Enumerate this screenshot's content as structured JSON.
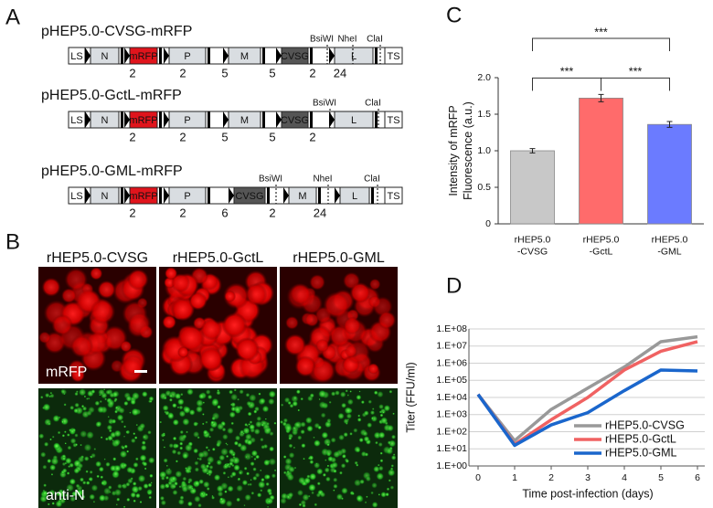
{
  "panels": {
    "a": {
      "label": "A",
      "constructs": [
        {
          "name": "pHEP5.0-CVSG-mRFP",
          "segments": [
            "LS",
            "N",
            "mRFP",
            "P",
            "M",
            "CVSG",
            "L",
            "TS"
          ],
          "junctions": [
            "2",
            "2",
            "5",
            "5",
            "2",
            "24"
          ],
          "sites": [
            "BsiWI",
            "NheI",
            "ClaI"
          ]
        },
        {
          "name": "pHEP5.0-GctL-mRFP",
          "segments": [
            "LS",
            "N",
            "mRFP",
            "P",
            "M",
            "CVSG",
            "L",
            "TS"
          ],
          "junctions": [
            "2",
            "2",
            "5",
            "5",
            "2"
          ],
          "sites": [
            "BsiWI",
            "ClaI"
          ]
        },
        {
          "name": "pHEP5.0-GML-mRFP",
          "segments": [
            "LS",
            "N",
            "mRFP",
            "P",
            "CVSG",
            "M",
            "L",
            "TS"
          ],
          "junctions": [
            "2",
            "2",
            "6",
            "2",
            "24"
          ],
          "sites": [
            "BsiWI",
            "NheI",
            "ClaI"
          ]
        }
      ]
    },
    "b": {
      "label": "B",
      "columns": [
        "rHEP5.0-CVSG",
        "rHEP5.0-GctL",
        "rHEP5.0-GML"
      ],
      "rows": [
        "mRFP",
        "anti-N"
      ]
    }
  },
  "chart_data": [
    {
      "type": "bar",
      "label": "C",
      "y_label": "Intensity of mRFP\nFluorescence (a.u.)",
      "categories": [
        "rHEP5.0\n-CVSG",
        "rHEP5.0\n-GctL",
        "rHEP5.0\n-GML"
      ],
      "values": [
        1.0,
        1.72,
        1.36
      ],
      "errors": [
        0.03,
        0.05,
        0.04
      ],
      "colors": [
        "#c8c8c8",
        "#ff6b6b",
        "#6b7bff"
      ],
      "ylim": [
        0,
        2.0
      ],
      "yticks": [
        0,
        0.5,
        {
          "value": 1.0,
          "label": "1.0"
        },
        1.5,
        {
          "value": 2.0,
          "label": "2.0"
        }
      ],
      "annotations": [
        {
          "text": "***",
          "between": [
            0,
            1
          ]
        },
        {
          "text": "***",
          "between": [
            1,
            2
          ]
        },
        {
          "text": "***",
          "between": [
            0,
            2
          ]
        }
      ]
    },
    {
      "type": "line",
      "label": "D",
      "x_label": "Time post-infection (days)",
      "y_label": "Titer (FFU/ml)",
      "log_y": true,
      "grid": true,
      "legend": "lower right",
      "x": [
        0,
        1,
        2,
        3,
        4,
        5,
        6
      ],
      "series": [
        {
          "name": "rHEP5.0-CVSG",
          "color": "#999999",
          "values": [
            15000,
            30,
            2000,
            35000,
            600000,
            18000000,
            35000000
          ]
        },
        {
          "name": "rHEP5.0-GctL",
          "color": "#f06262",
          "values": [
            15000,
            18,
            500,
            10000,
            400000,
            5000000,
            18000000
          ]
        },
        {
          "name": "rHEP5.0-GML",
          "color": "#1a66cc",
          "values": [
            15000,
            16,
            250,
            1300,
            25000,
            400000,
            350000
          ]
        }
      ],
      "xlim": [
        0,
        6
      ],
      "xticks": [
        0,
        1,
        2,
        3,
        4,
        5,
        6
      ],
      "ylim": [
        1,
        100000000
      ],
      "yticks": [
        {
          "value": 1,
          "label": "1.E+00"
        },
        {
          "value": 10,
          "label": "1.E+01"
        },
        {
          "value": 100,
          "label": "1.E+02"
        },
        {
          "value": 1000,
          "label": "1.E+03"
        },
        {
          "value": 10000,
          "label": "1.E+04"
        },
        {
          "value": 100000,
          "label": "1.E+05"
        },
        {
          "value": 1000000,
          "label": "1.E+06"
        },
        {
          "value": 10000000,
          "label": "1.E+07"
        },
        {
          "value": 100000000,
          "label": "1.E+08"
        }
      ]
    }
  ]
}
